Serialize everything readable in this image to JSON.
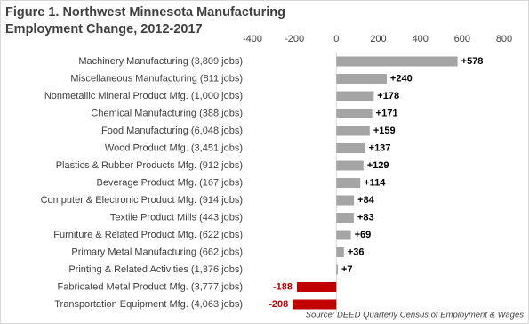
{
  "chart_data": {
    "type": "bar",
    "orientation": "horizontal",
    "title": "Figure 1. Northwest Minnesota Manufacturing Employment Change, 2012-2017",
    "categories": [
      "Machinery Manufacturing (3,809 jobs)",
      "Miscellaneous Manufacturing (811 jobs)",
      "Nonmetallic Mineral Product Mfg. (1,000 jobs)",
      "Chemical Manufacturing (388 jobs)",
      "Food Manufacturing (6,048 jobs)",
      "Wood Product Mfg. (3,451 jobs)",
      "Plastics & Rubber Products Mfg. (912 jobs)",
      "Beverage Product Mfg. (167 jobs)",
      "Computer & Electronic Product Mfg. (914 jobs)",
      "Textile Product Mills (443 jobs)",
      "Furniture & Related Product Mfg. (622 jobs)",
      "Primary Metal Manufacturing (662 jobs)",
      "Printing & Related Activities (1,376 jobs)",
      "Fabricated Metal Product Mfg. (3,777 jobs)",
      "Transportation Equipment Mfg. (4,063 jobs)"
    ],
    "values": [
      578,
      240,
      178,
      171,
      159,
      137,
      129,
      114,
      84,
      83,
      69,
      36,
      7,
      -188,
      -208
    ],
    "value_labels": [
      "+578",
      "+240",
      "+178",
      "+171",
      "+159",
      "+137",
      "+129",
      "+114",
      "+84",
      "+83",
      "+69",
      "+36",
      "+7",
      "-188",
      "-208"
    ],
    "colors": [
      "#a5a5a5",
      "#a5a5a5",
      "#a5a5a5",
      "#a5a5a5",
      "#a5a5a5",
      "#a5a5a5",
      "#a5a5a5",
      "#a5a5a5",
      "#a5a5a5",
      "#a5a5a5",
      "#a5a5a5",
      "#a5a5a5",
      "#a5a5a5",
      "#c00000",
      "#c00000"
    ],
    "xlim": [
      -400,
      800
    ],
    "xticks": [
      -400,
      -200,
      0,
      200,
      400,
      600,
      800
    ],
    "source": "Source: DEED Quarterly Census of Employment & Wages"
  }
}
